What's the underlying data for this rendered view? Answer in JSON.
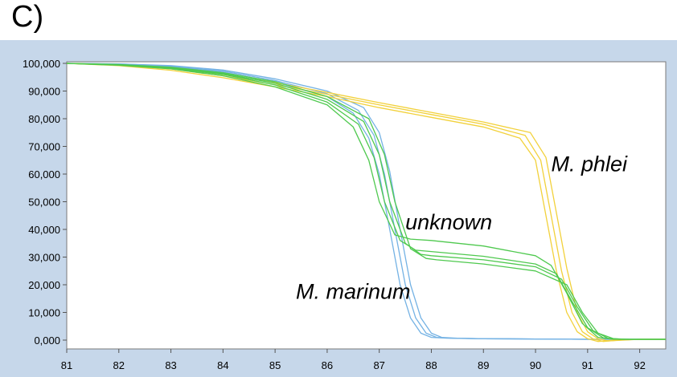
{
  "panel_label": "C)",
  "chart_data": {
    "type": "line",
    "title": "",
    "xlabel": "",
    "ylabel": "",
    "xlim": [
      81,
      92.5
    ],
    "ylim": [
      -1,
      106
    ],
    "x_ticks": [
      81,
      82,
      83,
      84,
      85,
      86,
      87,
      88,
      89,
      90,
      91,
      92
    ],
    "x_tick_labels": [
      "81",
      "82",
      "83",
      "84",
      "85",
      "86",
      "87",
      "88",
      "89",
      "90",
      "91",
      "92"
    ],
    "y_ticks": [
      0,
      10,
      20,
      30,
      40,
      50,
      60,
      70,
      80,
      90,
      100
    ],
    "y_tick_labels": [
      "0,000",
      "10,000",
      "20,000",
      "30,000",
      "40,000",
      "50,000",
      "60,000",
      "70,000",
      "80,000",
      "90,000",
      "100,000"
    ],
    "grid": false,
    "annotations": [
      {
        "text": "M. phlei",
        "x": 90.3,
        "y": 61
      },
      {
        "text": "unknown",
        "x": 87.5,
        "y": 40
      },
      {
        "text": "M. marinum",
        "x": 85.4,
        "y": 15
      }
    ],
    "colors": {
      "blue": "#74b2e4",
      "yellow": "#f2d13b",
      "green": "#4fc94f",
      "background": "#c6d7ea"
    },
    "series": [
      {
        "group": "blue",
        "color": "#74b2e4",
        "x": [
          81,
          82,
          83,
          84,
          85,
          86,
          86.5,
          86.8,
          87.0,
          87.2,
          87.4,
          87.6,
          87.8,
          88.0,
          88.3,
          89,
          90,
          91,
          92,
          92.5
        ],
        "y": [
          100,
          99.7,
          98.8,
          96.8,
          93.2,
          88,
          82,
          73,
          60,
          40,
          20,
          8,
          2.5,
          1,
          0.7,
          0.5,
          0.4,
          0.3,
          0.3,
          0.3
        ]
      },
      {
        "group": "blue",
        "color": "#74b2e4",
        "x": [
          81,
          82,
          83,
          84,
          85,
          86,
          86.6,
          86.9,
          87.1,
          87.3,
          87.5,
          87.7,
          87.9,
          88.1,
          88.4,
          89,
          90,
          91,
          92,
          92.5
        ],
        "y": [
          100,
          99.8,
          99,
          97.2,
          93.8,
          89,
          83,
          74,
          60,
          40,
          20,
          8,
          2.5,
          1,
          0.7,
          0.5,
          0.4,
          0.3,
          0.3,
          0.3
        ]
      },
      {
        "group": "blue",
        "color": "#74b2e4",
        "x": [
          81,
          82,
          83,
          84,
          85,
          86,
          86.7,
          87.0,
          87.2,
          87.4,
          87.6,
          87.8,
          88.0,
          88.2,
          88.5,
          89,
          90,
          91,
          92,
          92.5
        ],
        "y": [
          100,
          99.8,
          99.2,
          97.6,
          94.4,
          90,
          84,
          75,
          61,
          40,
          20,
          8,
          2.5,
          1,
          0.7,
          0.5,
          0.4,
          0.3,
          0.3,
          0.3
        ]
      },
      {
        "group": "yellow",
        "color": "#f2d13b",
        "x": [
          81,
          82,
          83,
          84,
          85,
          86,
          87,
          88,
          89,
          89.7,
          90.0,
          90.2,
          90.4,
          90.6,
          90.8,
          91.0,
          91.2,
          91.5,
          92,
          92.5
        ],
        "y": [
          100,
          99.2,
          97.5,
          94.8,
          91.5,
          88,
          84,
          80.5,
          77,
          73,
          65,
          45,
          25,
          10,
          3,
          0.5,
          -0.5,
          0,
          0.3,
          0.3
        ]
      },
      {
        "group": "yellow",
        "color": "#f2d13b",
        "x": [
          81,
          82,
          83,
          84,
          85,
          86,
          87,
          88,
          89,
          89.8,
          90.1,
          90.3,
          90.5,
          90.7,
          90.9,
          91.1,
          91.3,
          91.6,
          92,
          92.5
        ],
        "y": [
          100,
          99.4,
          98,
          95.5,
          92.3,
          88.8,
          85,
          81.5,
          78,
          74,
          65,
          45,
          25,
          10,
          3,
          0.5,
          -0.5,
          0,
          0.3,
          0.3
        ]
      },
      {
        "group": "yellow",
        "color": "#f2d13b",
        "x": [
          81,
          82,
          83,
          84,
          85,
          86,
          87,
          88,
          89,
          89.9,
          90.2,
          90.4,
          90.6,
          90.8,
          91.0,
          91.2,
          91.4,
          91.7,
          92,
          92.5
        ],
        "y": [
          100,
          99.5,
          98.3,
          96,
          93,
          89.5,
          85.8,
          82.3,
          78.8,
          75,
          66,
          46,
          26,
          10,
          3,
          0.5,
          -0.3,
          0,
          0.3,
          0.3
        ]
      },
      {
        "group": "green",
        "color": "#4fc94f",
        "x": [
          81,
          82,
          83,
          84,
          85,
          86,
          86.5,
          86.8,
          87.0,
          87.3,
          87.6,
          88,
          89,
          90,
          90.3,
          90.6,
          90.9,
          91.2,
          91.5,
          92,
          92.5
        ],
        "y": [
          100,
          99.3,
          98,
          95.5,
          91.5,
          85,
          77,
          65,
          50,
          38,
          36.5,
          36,
          34,
          30.5,
          27,
          17,
          6,
          1,
          0.3,
          0.3,
          0.3
        ]
      },
      {
        "group": "green",
        "color": "#4fc94f",
        "x": [
          81,
          82,
          83,
          84,
          85,
          86,
          86.6,
          86.9,
          87.1,
          87.4,
          87.7,
          88,
          89,
          90,
          90.4,
          90.7,
          91.0,
          91.3,
          91.6,
          92,
          92.5
        ],
        "y": [
          100,
          99.4,
          98.2,
          96,
          92.2,
          86,
          78,
          66,
          50,
          36,
          32.5,
          32,
          30.3,
          27.5,
          24,
          14,
          4.5,
          0.8,
          0.3,
          0.3,
          0.3
        ]
      },
      {
        "group": "green",
        "color": "#4fc94f",
        "x": [
          81,
          82,
          83,
          84,
          85,
          86,
          86.7,
          87.0,
          87.2,
          87.5,
          87.8,
          88,
          89,
          90,
          90.5,
          90.8,
          91.1,
          91.4,
          91.7,
          92,
          92.5
        ],
        "y": [
          100,
          99.5,
          98.4,
          96.3,
          92.8,
          87,
          79,
          67,
          50,
          35,
          31,
          30.5,
          29,
          26.5,
          22,
          12,
          3.5,
          0.6,
          0.3,
          0.3,
          0.3
        ]
      },
      {
        "group": "green",
        "color": "#4fc94f",
        "x": [
          81,
          82,
          83,
          84,
          85,
          86,
          86.8,
          87.1,
          87.3,
          87.6,
          87.9,
          88.1,
          89,
          90,
          90.6,
          90.9,
          91.2,
          91.5,
          91.8,
          92,
          92.5
        ],
        "y": [
          100,
          99.6,
          98.6,
          96.6,
          93.4,
          88,
          80,
          67,
          50,
          33,
          29.5,
          29,
          27.5,
          25,
          20,
          10,
          2.5,
          0.5,
          0.3,
          0.3,
          0.3
        ]
      }
    ]
  }
}
